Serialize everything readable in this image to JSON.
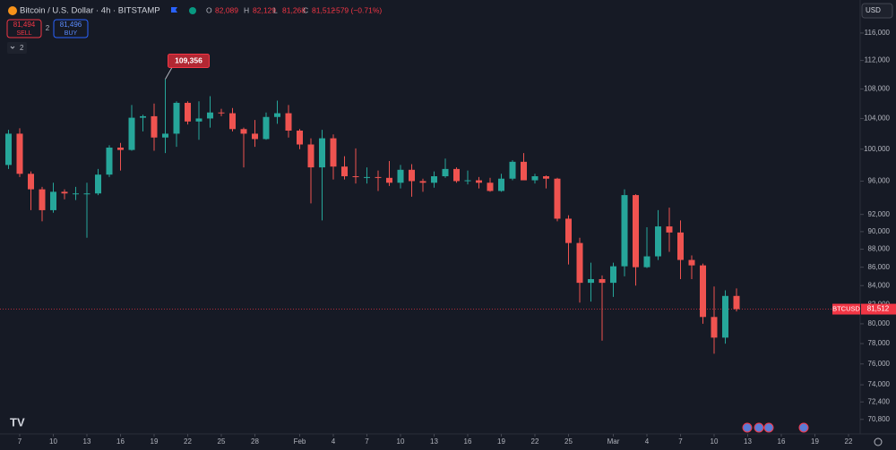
{
  "header": {
    "title": "Bitcoin / U.S. Dollar · 4h · BITSTAMP",
    "ohlc": [
      "O",
      "82,089",
      "H",
      "82,129",
      "L",
      "81,268",
      "C",
      "81,512",
      "−579 (−0.71%)"
    ],
    "sell_price": "81,494",
    "sell": "SELL",
    "spread": "2",
    "buy_price": "81,496",
    "buy": "BUY",
    "indicators": "2",
    "currency": "USD"
  },
  "chart_data": {
    "type": "candlestick",
    "symbol": "BTCUSD",
    "log_scale": true,
    "up_color": "#26a69a",
    "down_color": "#ef5350",
    "x": [
      6,
      7,
      8,
      9,
      10,
      11,
      12,
      13,
      14,
      15,
      16,
      17,
      18,
      19,
      20,
      21,
      22,
      23,
      24,
      25,
      26,
      27,
      28,
      29,
      30,
      31,
      32,
      33,
      34,
      35,
      36,
      37,
      38,
      39,
      40,
      41,
      42,
      43,
      44,
      45,
      46,
      47,
      48,
      49,
      50,
      51,
      52,
      53,
      54,
      55,
      56,
      57,
      58,
      59,
      60,
      61,
      62,
      63,
      64,
      65,
      66,
      67,
      68,
      69,
      70,
      71
    ],
    "open": [
      98000,
      102000,
      96900,
      95000,
      92500,
      94700,
      94500,
      94500,
      94500,
      96800,
      100200,
      99900,
      104100,
      104300,
      101500,
      102000,
      106100,
      103600,
      104000,
      104800,
      104700,
      102600,
      102000,
      101300,
      104200,
      104700,
      102400,
      100600,
      97700,
      101400,
      97800,
      96600,
      96500,
      96500,
      96400,
      95800,
      97400,
      96000,
      95800,
      96600,
      97500,
      96000,
      96100,
      95800,
      94800,
      96300,
      98400,
      96100,
      96600,
      96300,
      91500,
      88700,
      84300,
      84700,
      84300,
      86100,
      94300,
      86000,
      87200,
      90600,
      89900,
      86800,
      86200,
      80700,
      78600,
      82900
    ],
    "high": [
      102500,
      102700,
      97200,
      95300,
      95800,
      95000,
      95300,
      95800,
      97500,
      100500,
      100800,
      105800,
      104500,
      106000,
      109356,
      106300,
      106300,
      106300,
      107000,
      105300,
      105400,
      102800,
      103800,
      104800,
      106400,
      105800,
      102600,
      101400,
      102500,
      101900,
      99100,
      100100,
      97700,
      97300,
      98500,
      98000,
      98100,
      96300,
      97200,
      98800,
      97700,
      97300,
      96500,
      96400,
      96900,
      98600,
      99500,
      96900,
      96700,
      96400,
      91900,
      89300,
      86500,
      85100,
      86500,
      95000,
      94400,
      90500,
      92500,
      92800,
      91300,
      87300,
      86400,
      83900,
      83500,
      83700
    ],
    "low": [
      97500,
      96500,
      92500,
      91200,
      92200,
      93800,
      93700,
      89300,
      94300,
      96500,
      97300,
      99800,
      102300,
      99800,
      99500,
      100300,
      103200,
      101200,
      102800,
      104300,
      102300,
      97700,
      100300,
      101200,
      103300,
      101500,
      100000,
      93300,
      91300,
      96200,
      96200,
      95700,
      95700,
      94800,
      95400,
      95100,
      94100,
      94700,
      95200,
      96400,
      95800,
      95600,
      95100,
      94700,
      94700,
      96100,
      96100,
      95700,
      95100,
      91200,
      86300,
      82200,
      82300,
      78300,
      82800,
      85000,
      84000,
      85900,
      86800,
      87700,
      84700,
      84700,
      80000,
      77000,
      78000,
      81268
    ],
    "close": [
      102000,
      96900,
      95000,
      92500,
      94700,
      94500,
      94500,
      94500,
      96800,
      100200,
      99900,
      104100,
      104300,
      101500,
      102000,
      106100,
      103600,
      104000,
      104800,
      104700,
      102600,
      102000,
      101300,
      104200,
      104700,
      102400,
      100600,
      97700,
      101400,
      97800,
      96600,
      96500,
      96500,
      96400,
      95800,
      97400,
      96000,
      95800,
      96600,
      97500,
      96000,
      96100,
      95800,
      94800,
      96300,
      98400,
      96100,
      96600,
      96300,
      91500,
      88700,
      84300,
      84700,
      84300,
      86100,
      94300,
      86000,
      87200,
      90600,
      89900,
      86800,
      86200,
      80700,
      78600,
      82900,
      81512
    ],
    "last_price": {
      "value": 81512,
      "label": "81,512"
    },
    "high_label": {
      "value": 109356,
      "label": "109,356"
    },
    "xlim": [
      5.24,
      82.04
    ],
    "xticks": [
      7,
      10,
      13,
      16,
      19,
      22,
      25,
      28,
      {
        "value": 32,
        "label": "Feb"
      },
      {
        "value": 35,
        "label": "4"
      },
      {
        "value": 38,
        "label": "7"
      },
      {
        "value": 41,
        "label": "10"
      },
      {
        "value": 44,
        "label": "13"
      },
      {
        "value": 47,
        "label": "16"
      },
      {
        "value": 50,
        "label": "19"
      },
      {
        "value": 53,
        "label": "22"
      },
      {
        "value": 56,
        "label": "25"
      },
      {
        "value": 60,
        "label": "Mar"
      },
      {
        "value": 63,
        "label": "4"
      },
      {
        "value": 66,
        "label": "7"
      },
      {
        "value": 69,
        "label": "10"
      },
      {
        "value": 72,
        "label": "13"
      },
      {
        "value": 75,
        "label": "16"
      },
      {
        "value": 78,
        "label": "19"
      },
      {
        "value": 81,
        "label": "22"
      }
    ],
    "ylim": [
      69500,
      121000
    ],
    "yticks": [
      {
        "value": 116000,
        "label": "116,000"
      },
      {
        "value": 112000,
        "label": "112,000"
      },
      {
        "value": 108000,
        "label": "108,000"
      },
      {
        "value": 104000,
        "label": "104,000"
      },
      {
        "value": 100000,
        "label": "100,000"
      },
      {
        "value": 96000,
        "label": "96,000"
      },
      {
        "value": 92000,
        "label": "92,000"
      },
      {
        "value": 90000,
        "label": "90,000"
      },
      {
        "value": 88000,
        "label": "88,000"
      },
      {
        "value": 86000,
        "label": "86,000"
      },
      {
        "value": 84000,
        "label": "84,000"
      },
      {
        "value": 82000,
        "label": "82,000"
      },
      {
        "value": 80000,
        "label": "80,000"
      },
      {
        "value": 78000,
        "label": "78,000"
      },
      {
        "value": 76000,
        "label": "76,000"
      },
      {
        "value": 74000,
        "label": "74,000"
      },
      {
        "value": 72400,
        "label": "72,400"
      },
      {
        "value": 70800,
        "label": "70,800"
      }
    ]
  }
}
